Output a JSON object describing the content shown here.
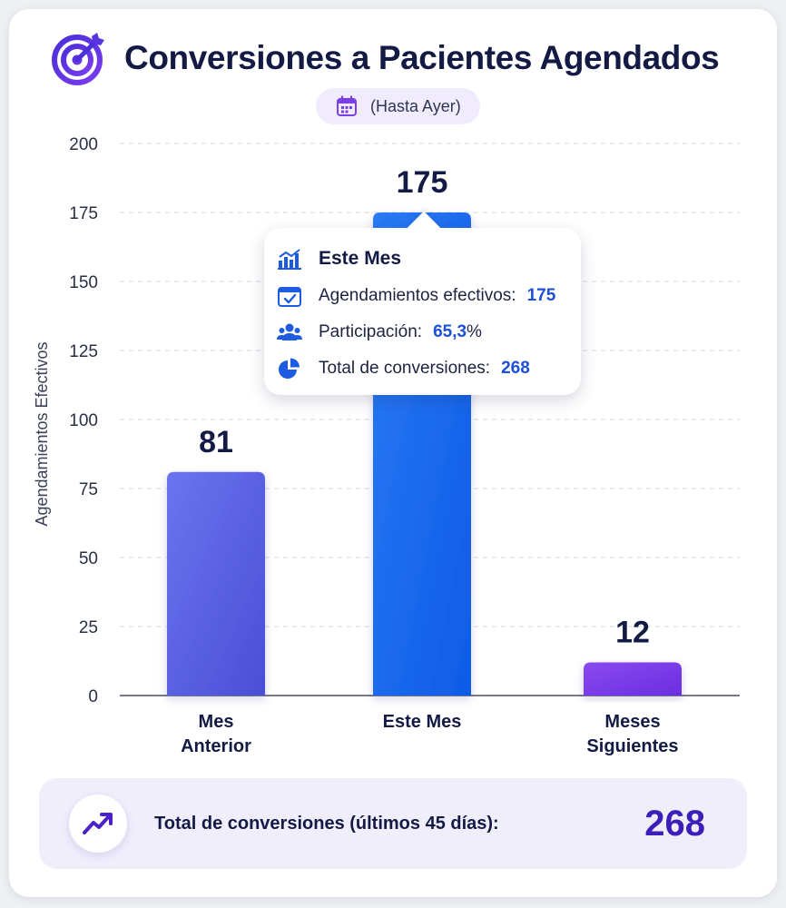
{
  "header": {
    "title": "Conversiones a Pacientes Agendados",
    "subtitle": "(Hasta Ayer)",
    "icon": "target-icon",
    "subtitle_icon": "calendar-icon"
  },
  "chart_data": {
    "type": "bar",
    "ylabel": "Agendamientos Efectivos",
    "ylim": [
      0,
      200
    ],
    "yticks": [
      0,
      25,
      50,
      75,
      100,
      125,
      150,
      175,
      200
    ],
    "categories": [
      [
        "Mes",
        "Anterior"
      ],
      [
        "Este Mes"
      ],
      [
        "Meses",
        "Siguientes"
      ]
    ],
    "values": [
      81,
      175,
      12
    ],
    "data_labels": [
      "81",
      "175",
      "12"
    ],
    "colors": [
      "#5b63e6",
      "#1766f0",
      "#7a35ea"
    ],
    "grid": true
  },
  "tooltip": {
    "title": "Este Mes",
    "rows": [
      {
        "label": "Agendamientos efectivos:",
        "value": "175",
        "icon": "calendar-check-icon"
      },
      {
        "label": "Participación:",
        "value": "65,3",
        "suffix": "%",
        "icon": "users-icon"
      },
      {
        "label": "Total de conversiones:",
        "value": "268",
        "icon": "pie-chart-icon"
      }
    ],
    "title_icon": "bar-chart-icon"
  },
  "footer": {
    "label": "Total de conversiones (últimos 45 días):",
    "value": "268",
    "icon": "trending-up-icon"
  }
}
